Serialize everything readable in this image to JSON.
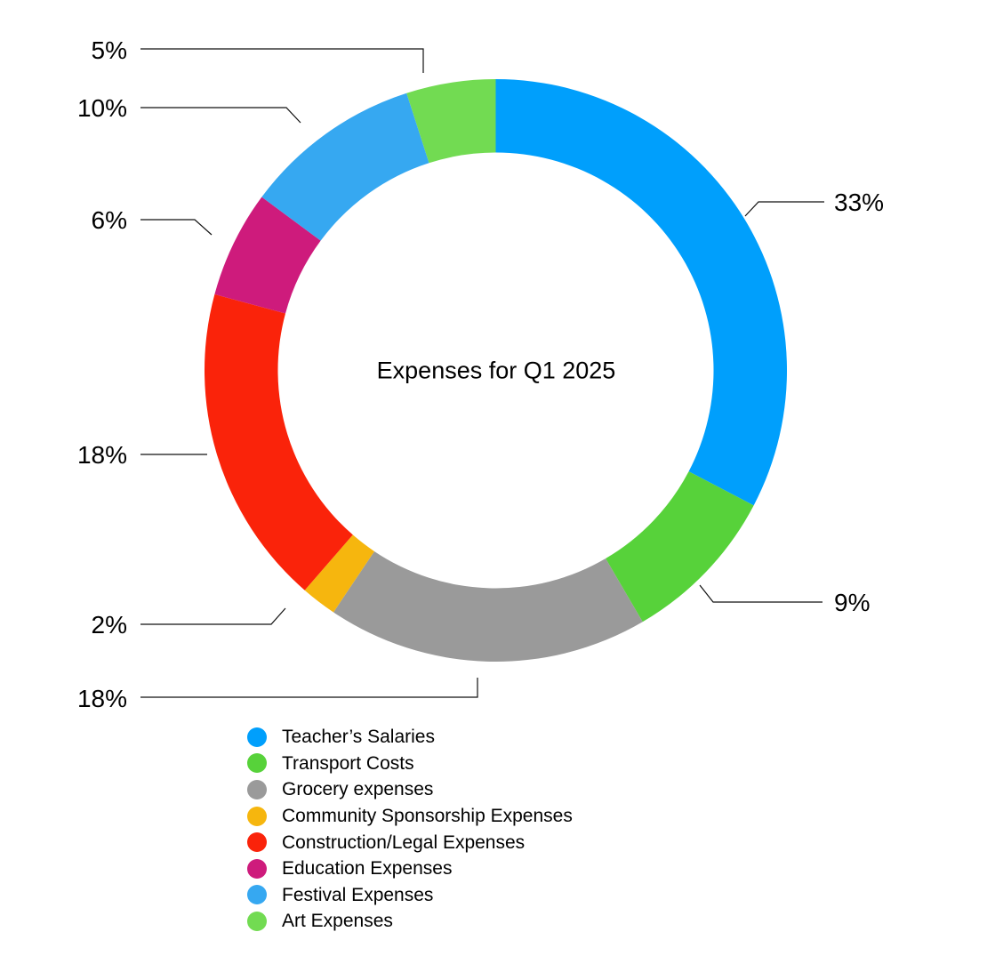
{
  "title": "Expenses for Q1 2025",
  "chart_data": {
    "type": "pie",
    "subtype": "donut",
    "center_label": "Expenses for Q1 2025",
    "direction": "clockwise",
    "start_angle_deg": 0,
    "legend_position": "bottom-left",
    "grid": false,
    "series": [
      {
        "label": "Teacher’s Salaries",
        "value": 33,
        "percent_label": "33%",
        "color": "#009FFC"
      },
      {
        "label": "Transport Costs",
        "value": 9,
        "percent_label": "9%",
        "color": "#57D23A"
      },
      {
        "label": "Grocery expenses",
        "value": 18,
        "percent_label": "18%",
        "color": "#9A9A9A"
      },
      {
        "label": "Community Sponsorship Expenses",
        "value": 2,
        "percent_label": "2%",
        "color": "#F6B60E"
      },
      {
        "label": "Construction/Legal Expenses",
        "value": 18,
        "percent_label": "18%",
        "color": "#FA230A"
      },
      {
        "label": "Education Expenses",
        "value": 6,
        "percent_label": "6%",
        "color": "#CE1B7C"
      },
      {
        "label": "Festival Expenses",
        "value": 10,
        "percent_label": "10%",
        "color": "#36A8F1"
      },
      {
        "label": "Art Expenses",
        "value": 5,
        "percent_label": "5%",
        "color": "#72DB52"
      }
    ]
  }
}
